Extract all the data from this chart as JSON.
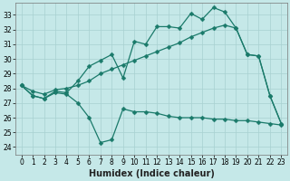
{
  "bg_color": "#c5e8e8",
  "line_color": "#1a7a6a",
  "xlabel": "Humidex (Indice chaleur)",
  "xlim": [
    -0.5,
    23.5
  ],
  "ylim": [
    23.5,
    33.8
  ],
  "x_ticks": [
    0,
    1,
    2,
    3,
    4,
    5,
    6,
    7,
    8,
    9,
    10,
    11,
    12,
    13,
    14,
    15,
    16,
    17,
    18,
    19,
    20,
    21,
    22,
    23
  ],
  "y_ticks": [
    24,
    25,
    26,
    27,
    28,
    29,
    30,
    31,
    32,
    33
  ],
  "series_low_x": [
    0,
    1,
    2,
    3,
    4,
    5,
    6,
    7,
    8,
    9,
    10,
    11,
    12,
    13,
    14,
    15,
    16,
    17,
    18,
    19,
    20,
    21,
    22,
    23
  ],
  "series_low_y": [
    28.2,
    27.5,
    27.3,
    27.7,
    27.6,
    27.0,
    26.0,
    24.3,
    24.5,
    26.6,
    26.4,
    26.4,
    26.3,
    26.1,
    26.0,
    26.0,
    26.0,
    25.9,
    25.9,
    25.8,
    25.8,
    25.7,
    25.6,
    25.5
  ],
  "series_high_x": [
    0,
    1,
    2,
    3,
    4,
    5,
    6,
    7,
    8,
    9,
    10,
    11,
    12,
    13,
    14,
    15,
    16,
    17,
    18,
    19,
    20,
    21,
    22,
    23
  ],
  "series_high_y": [
    28.2,
    27.5,
    27.3,
    27.8,
    27.7,
    28.5,
    29.5,
    29.9,
    30.3,
    28.7,
    31.2,
    31.0,
    32.2,
    32.2,
    32.1,
    33.1,
    32.7,
    33.5,
    33.2,
    32.1,
    30.3,
    30.2,
    27.5,
    25.6
  ],
  "series_mid_x": [
    0,
    1,
    2,
    3,
    4,
    5,
    6,
    7,
    8,
    9,
    10,
    11,
    12,
    13,
    14,
    15,
    16,
    17,
    18,
    19,
    20,
    21,
    22,
    23
  ],
  "series_mid_y": [
    28.2,
    27.8,
    27.6,
    27.9,
    28.0,
    28.2,
    28.5,
    29.0,
    29.3,
    29.6,
    29.9,
    30.2,
    30.5,
    30.8,
    31.1,
    31.5,
    31.8,
    32.1,
    32.3,
    32.1,
    30.3,
    30.2,
    27.5,
    25.6
  ],
  "tick_fontsize": 5.5,
  "xlabel_fontsize": 7,
  "grid_color": "#a8d0d0",
  "marker": "D",
  "markersize": 2.5,
  "linewidth": 0.9
}
